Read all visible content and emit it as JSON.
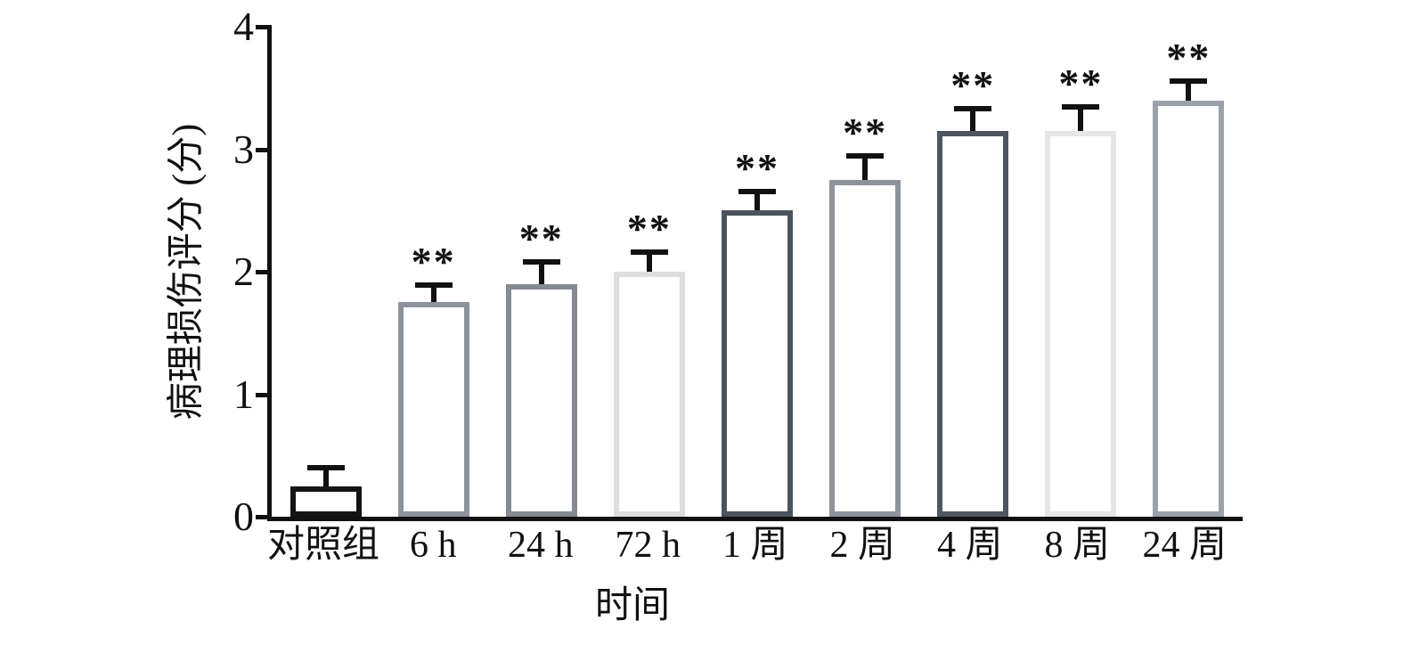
{
  "chart_data": {
    "type": "bar",
    "title": "",
    "xlabel": "时间",
    "ylabel": "病理损伤评分 (分)",
    "ylim": [
      0,
      4
    ],
    "yticks": [
      0,
      1,
      2,
      3,
      4
    ],
    "categories": [
      "对照组",
      "6 h",
      "24 h",
      "72 h",
      "1 周",
      "2 周",
      "4 周",
      "8 周",
      "24 周"
    ],
    "values": [
      0.25,
      1.75,
      1.9,
      2.0,
      2.5,
      2.75,
      3.15,
      3.15,
      3.4
    ],
    "errors": [
      0.17,
      0.16,
      0.2,
      0.18,
      0.18,
      0.22,
      0.2,
      0.22,
      0.18
    ],
    "significance": [
      "",
      "**",
      "**",
      "**",
      "**",
      "**",
      "**",
      "**",
      "**"
    ],
    "bar_fill": "#ffffff",
    "bar_border_width": 6,
    "bar_border_colors": [
      "#141414",
      "#8e939b",
      "#868b92",
      "#dcdee0",
      "#4d535c",
      "#8e939b",
      "#50565f",
      "#e4e6e8",
      "#9ba1a9"
    ],
    "error_color": "#111111",
    "axis_color": "#111111",
    "grid": false,
    "legend_position": "none"
  }
}
